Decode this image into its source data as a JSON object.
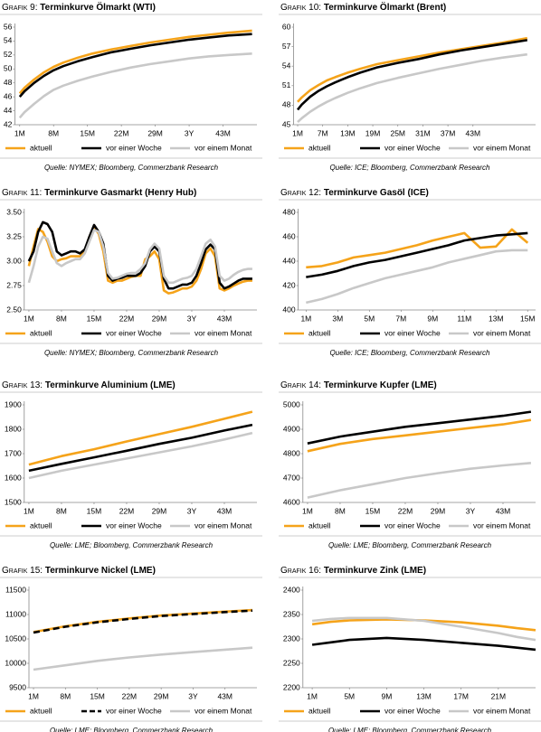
{
  "chart_data": [
    {
      "type": "line",
      "label": "Grafik 9:",
      "title": "Terminkurve Ölmarkt (WTI)",
      "source": "Quelle: NYMEX; Bloomberg, Commerzbank Research",
      "legend": "bottom",
      "x": [
        1,
        2,
        4,
        6,
        8,
        10,
        13,
        16,
        20,
        24,
        28,
        32,
        36,
        40,
        44,
        49
      ],
      "xlim": [
        0,
        50
      ],
      "xticks": [
        {
          "value": 1,
          "label": "1M"
        },
        {
          "value": 8,
          "label": "8M"
        },
        {
          "value": 15,
          "label": "15M"
        },
        {
          "value": 22,
          "label": "22M"
        },
        {
          "value": 29,
          "label": "29M"
        },
        {
          "value": 36,
          "label": "3Y"
        },
        {
          "value": 43,
          "label": "43M"
        }
      ],
      "ylim": [
        42,
        56
      ],
      "yticks": [
        42,
        44,
        46,
        48,
        50,
        52,
        54,
        56
      ],
      "series": [
        {
          "name": "aktuell",
          "color": "#f5a31a",
          "values": [
            46.5,
            47.3,
            48.5,
            49.5,
            50.3,
            50.9,
            51.6,
            52.2,
            52.8,
            53.3,
            53.8,
            54.2,
            54.6,
            54.9,
            55.2,
            55.5
          ]
        },
        {
          "name": "vor einer Woche",
          "color": "#000000",
          "values": [
            46.0,
            46.8,
            48.0,
            49.0,
            49.8,
            50.4,
            51.1,
            51.7,
            52.4,
            52.9,
            53.4,
            53.8,
            54.2,
            54.5,
            54.8,
            55.0
          ]
        },
        {
          "name": "vor einem Monat",
          "color": "#c8c8c8",
          "values": [
            43.0,
            43.8,
            45.0,
            46.1,
            47.0,
            47.6,
            48.3,
            48.9,
            49.6,
            50.2,
            50.7,
            51.1,
            51.5,
            51.8,
            52.0,
            52.2
          ]
        }
      ]
    },
    {
      "type": "line",
      "label": "Grafik 10:",
      "title": "Terminkurve Ölmarkt (Brent)",
      "source": "Quelle: ICE; Bloomberg, Commerzbank Research",
      "legend": "bottom",
      "x": [
        1,
        2,
        4,
        6,
        8,
        10,
        13,
        16,
        20,
        25,
        30,
        35,
        40,
        45,
        50,
        56
      ],
      "xlim": [
        0,
        58
      ],
      "xticks": [
        {
          "value": 1,
          "label": "1M"
        },
        {
          "value": 7,
          "label": "7M"
        },
        {
          "value": 13,
          "label": "13M"
        },
        {
          "value": 19,
          "label": "19M"
        },
        {
          "value": 25,
          "label": "25M"
        },
        {
          "value": 31,
          "label": "31M"
        },
        {
          "value": 37,
          "label": "37M"
        },
        {
          "value": 43,
          "label": "43M"
        }
      ],
      "ylim": [
        45,
        60
      ],
      "yticks": [
        45,
        48,
        51,
        54,
        57,
        60
      ],
      "series": [
        {
          "name": "aktuell",
          "color": "#f5a31a",
          "values": [
            48.5,
            49.2,
            50.3,
            51.1,
            51.8,
            52.3,
            53.0,
            53.6,
            54.3,
            54.9,
            55.5,
            56.1,
            56.6,
            57.1,
            57.6,
            58.3
          ]
        },
        {
          "name": "vor einer Woche",
          "color": "#000000",
          "values": [
            47.3,
            48.1,
            49.3,
            50.2,
            50.9,
            51.5,
            52.3,
            53.0,
            53.8,
            54.5,
            55.1,
            55.8,
            56.4,
            56.9,
            57.4,
            58.0
          ]
        },
        {
          "name": "vor einem Monat",
          "color": "#c8c8c8",
          "values": [
            45.4,
            46.0,
            47.0,
            47.8,
            48.5,
            49.1,
            49.9,
            50.6,
            51.4,
            52.2,
            52.9,
            53.6,
            54.2,
            54.8,
            55.3,
            55.8
          ]
        }
      ]
    },
    {
      "type": "line",
      "label": "Grafik 11:",
      "title": "Terminkurve Gasmarkt (Henry Hub)",
      "source": "Quelle: NYMEX; Bloomberg, Commerzbank Research",
      "legend": "bottom",
      "x": [
        1,
        2,
        3,
        4,
        5,
        6,
        7,
        8,
        9,
        10,
        11,
        12,
        13,
        14,
        15,
        16,
        17,
        18,
        19,
        20,
        21,
        22,
        23,
        24,
        25,
        26,
        27,
        28,
        29,
        30,
        31,
        32,
        33,
        34,
        35,
        36,
        37,
        38,
        39,
        40,
        41,
        42,
        43,
        44,
        45,
        46,
        47,
        48,
        49
      ],
      "xlim": [
        0,
        50
      ],
      "xticks": [
        {
          "value": 1,
          "label": "1M"
        },
        {
          "value": 8,
          "label": "8M"
        },
        {
          "value": 15,
          "label": "15M"
        },
        {
          "value": 22,
          "label": "22M"
        },
        {
          "value": 29,
          "label": "29M"
        },
        {
          "value": 36,
          "label": "3Y"
        },
        {
          "value": 43,
          "label": "43M"
        }
      ],
      "ylim": [
        2.5,
        3.5
      ],
      "yticks": [
        {
          "value": 2.5,
          "label": "2.50"
        },
        2.75,
        {
          "value": 3,
          "label": "3.00"
        },
        3.25,
        {
          "value": 3.5,
          "label": "3.50"
        }
      ],
      "series": [
        {
          "name": "aktuell",
          "color": "#f5a31a",
          "values": [
            2.95,
            3.15,
            3.33,
            3.3,
            3.2,
            3.05,
            3.0,
            3.02,
            3.03,
            3.05,
            3.05,
            3.05,
            3.1,
            3.25,
            3.35,
            3.28,
            3.1,
            2.8,
            2.78,
            2.8,
            2.8,
            2.82,
            2.84,
            2.85,
            2.85,
            3.02,
            3.05,
            3.1,
            3.02,
            2.7,
            2.67,
            2.68,
            2.7,
            2.72,
            2.72,
            2.74,
            2.8,
            2.92,
            3.08,
            3.13,
            3.05,
            2.72,
            2.7,
            2.72,
            2.75,
            2.77,
            2.79,
            2.8,
            2.8
          ]
        },
        {
          "name": "vor einer Woche",
          "color": "#000000",
          "values": [
            3.0,
            3.1,
            3.3,
            3.4,
            3.38,
            3.3,
            3.1,
            3.06,
            3.08,
            3.1,
            3.1,
            3.08,
            3.12,
            3.25,
            3.37,
            3.3,
            3.18,
            2.85,
            2.8,
            2.82,
            2.83,
            2.85,
            2.85,
            2.85,
            2.88,
            2.95,
            3.1,
            3.15,
            3.1,
            2.82,
            2.72,
            2.72,
            2.74,
            2.76,
            2.76,
            2.78,
            2.85,
            2.98,
            3.12,
            3.17,
            3.12,
            2.78,
            2.72,
            2.74,
            2.77,
            2.8,
            2.82,
            2.82,
            2.82
          ]
        },
        {
          "name": "vor einem Monat",
          "color": "#c8c8c8",
          "values": [
            2.78,
            2.95,
            3.15,
            3.25,
            3.23,
            3.1,
            2.98,
            2.95,
            2.98,
            3.0,
            3.02,
            3.02,
            3.08,
            3.2,
            3.32,
            3.3,
            3.15,
            2.88,
            2.82,
            2.83,
            2.85,
            2.87,
            2.88,
            2.88,
            2.92,
            2.98,
            3.12,
            3.18,
            3.13,
            2.85,
            2.78,
            2.78,
            2.8,
            2.82,
            2.83,
            2.85,
            2.92,
            3.05,
            3.18,
            3.22,
            3.15,
            2.85,
            2.8,
            2.82,
            2.86,
            2.89,
            2.91,
            2.92,
            2.92
          ]
        }
      ]
    },
    {
      "type": "line",
      "label": "Grafik 12:",
      "title": "Terminkurve Gasöl (ICE)",
      "source": "Quelle: ICE; Bloomberg, Commerzbank Research",
      "legend": "bottom",
      "x": [
        1,
        2,
        3,
        4,
        5,
        6,
        7,
        8,
        9,
        10,
        11,
        12,
        13,
        14,
        15
      ],
      "xlim": [
        0.5,
        15.5
      ],
      "xticks": [
        {
          "value": 1,
          "label": "1M"
        },
        {
          "value": 3,
          "label": "3M"
        },
        {
          "value": 5,
          "label": "5M"
        },
        {
          "value": 7,
          "label": "7M"
        },
        {
          "value": 9,
          "label": "9M"
        },
        {
          "value": 11,
          "label": "11M"
        },
        {
          "value": 13,
          "label": "13M"
        },
        {
          "value": 15,
          "label": "15M"
        }
      ],
      "ylim": [
        400,
        480
      ],
      "yticks": [
        400,
        420,
        440,
        460,
        480
      ],
      "series": [
        {
          "name": "aktuell",
          "color": "#f5a31a",
          "values": [
            435,
            436,
            439,
            443,
            445,
            447,
            450,
            453,
            457,
            460,
            463,
            451,
            452,
            466,
            455
          ]
        },
        {
          "name": "vor einer Woche",
          "color": "#000000",
          "values": [
            427,
            429,
            432,
            436,
            439,
            441,
            444,
            447,
            450,
            453,
            457,
            459,
            461,
            462,
            463
          ]
        },
        {
          "name": "vor einem Monat",
          "color": "#c8c8c8",
          "values": [
            406,
            409,
            413,
            418,
            422,
            426,
            429,
            432,
            435,
            439,
            442,
            445,
            448,
            449,
            449
          ]
        }
      ]
    },
    {
      "type": "line",
      "label": "Grafik 13:",
      "title": "Terminkurve Aluminium (LME)",
      "source": "Quelle: LME; Bloomberg, Commerzbank Research",
      "legend": "bottom",
      "x": [
        1,
        8,
        15,
        22,
        29,
        36,
        43,
        49
      ],
      "xlim": [
        0,
        50
      ],
      "xticks": [
        {
          "value": 1,
          "label": "1M"
        },
        {
          "value": 8,
          "label": "8M"
        },
        {
          "value": 15,
          "label": "15M"
        },
        {
          "value": 22,
          "label": "22M"
        },
        {
          "value": 29,
          "label": "29M"
        },
        {
          "value": 36,
          "label": "3Y"
        },
        {
          "value": 43,
          "label": "43M"
        }
      ],
      "ylim": [
        1500,
        1900
      ],
      "yticks": [
        1500,
        1600,
        1700,
        1800,
        1900
      ],
      "series": [
        {
          "name": "aktuell",
          "color": "#f5a31a",
          "values": [
            1655,
            1690,
            1718,
            1750,
            1780,
            1810,
            1843,
            1872
          ]
        },
        {
          "name": "vor einer Woche",
          "color": "#000000",
          "values": [
            1630,
            1658,
            1685,
            1712,
            1740,
            1765,
            1795,
            1818
          ]
        },
        {
          "name": "vor einem Monat",
          "color": "#c8c8c8",
          "values": [
            1600,
            1630,
            1655,
            1680,
            1705,
            1730,
            1758,
            1785
          ]
        }
      ]
    },
    {
      "type": "line",
      "label": "Grafik 14:",
      "title": "Terminkurve Kupfer (LME)",
      "source": "Quelle: LME; Bloomberg, Commerzbank Research",
      "legend": "bottom",
      "x": [
        1,
        8,
        15,
        22,
        29,
        36,
        43,
        49
      ],
      "xlim": [
        0,
        50
      ],
      "xticks": [
        {
          "value": 1,
          "label": "1M"
        },
        {
          "value": 8,
          "label": "8M"
        },
        {
          "value": 15,
          "label": "15M"
        },
        {
          "value": 22,
          "label": "22M"
        },
        {
          "value": 29,
          "label": "29M"
        },
        {
          "value": 36,
          "label": "3Y"
        },
        {
          "value": 43,
          "label": "43M"
        }
      ],
      "ylim": [
        4600,
        5000
      ],
      "yticks": [
        4600,
        4700,
        4800,
        4900,
        5000
      ],
      "series": [
        {
          "name": "aktuell",
          "color": "#f5a31a",
          "values": [
            4810,
            4840,
            4860,
            4875,
            4890,
            4905,
            4920,
            4938
          ]
        },
        {
          "name": "vor einer Woche",
          "color": "#000000",
          "values": [
            4842,
            4870,
            4890,
            4910,
            4925,
            4940,
            4955,
            4972
          ]
        },
        {
          "name": "vor einem Monat",
          "color": "#c8c8c8",
          "values": [
            4620,
            4650,
            4675,
            4700,
            4720,
            4738,
            4752,
            4762
          ]
        }
      ]
    },
    {
      "type": "line",
      "label": "Grafik 15:",
      "title": "Terminkurve Nickel (LME)",
      "source": "Quelle: LME; Bloomberg, Commerzbank Research",
      "legend": "bottom",
      "x": [
        1,
        8,
        15,
        22,
        29,
        36,
        43,
        49
      ],
      "xlim": [
        0,
        50
      ],
      "xticks": [
        {
          "value": 1,
          "label": "1M"
        },
        {
          "value": 8,
          "label": "8M"
        },
        {
          "value": 15,
          "label": "15M"
        },
        {
          "value": 22,
          "label": "22M"
        },
        {
          "value": 29,
          "label": "29M"
        },
        {
          "value": 36,
          "label": "3Y"
        },
        {
          "value": 43,
          "label": "43M"
        }
      ],
      "ylim": [
        9500,
        11500
      ],
      "yticks": [
        9500,
        10000,
        10500,
        11000,
        11500
      ],
      "series": [
        {
          "name": "aktuell",
          "color": "#f5a31a",
          "values": [
            10640,
            10760,
            10850,
            10920,
            10980,
            11020,
            11060,
            11090
          ]
        },
        {
          "name": "vor einer Woche",
          "color": "#000000",
          "dashed": true,
          "values": [
            10630,
            10750,
            10840,
            10910,
            10970,
            11010,
            11050,
            11080
          ]
        },
        {
          "name": "vor einem Monat",
          "color": "#c8c8c8",
          "values": [
            9870,
            9960,
            10050,
            10120,
            10180,
            10230,
            10280,
            10320
          ]
        }
      ]
    },
    {
      "type": "line",
      "label": "Grafik 16:",
      "title": "Terminkurve Zink (LME)",
      "source": "Quelle: LME; Bloomberg, Commerzbank Research",
      "legend": "bottom",
      "x": [
        1,
        3,
        5,
        9,
        13,
        17,
        21,
        23,
        25
      ],
      "xlim": [
        0,
        25
      ],
      "xticks": [
        {
          "value": 1,
          "label": "1M"
        },
        {
          "value": 5,
          "label": "5M"
        },
        {
          "value": 9,
          "label": "9M"
        },
        {
          "value": 13,
          "label": "13M"
        },
        {
          "value": 17,
          "label": "17M"
        },
        {
          "value": 21,
          "label": "21M"
        }
      ],
      "ylim": [
        2200,
        2400
      ],
      "yticks": [
        2200,
        2250,
        2300,
        2350,
        2400
      ],
      "series": [
        {
          "name": "aktuell",
          "color": "#f5a31a",
          "values": [
            2330,
            2335,
            2338,
            2340,
            2338,
            2334,
            2327,
            2322,
            2318
          ]
        },
        {
          "name": "vor einer Woche",
          "color": "#000000",
          "values": [
            2288,
            2293,
            2298,
            2302,
            2298,
            2292,
            2286,
            2282,
            2278
          ]
        },
        {
          "name": "vor einem Monat",
          "color": "#c8c8c8",
          "values": [
            2337,
            2341,
            2343,
            2343,
            2337,
            2325,
            2312,
            2304,
            2298
          ]
        }
      ]
    }
  ]
}
